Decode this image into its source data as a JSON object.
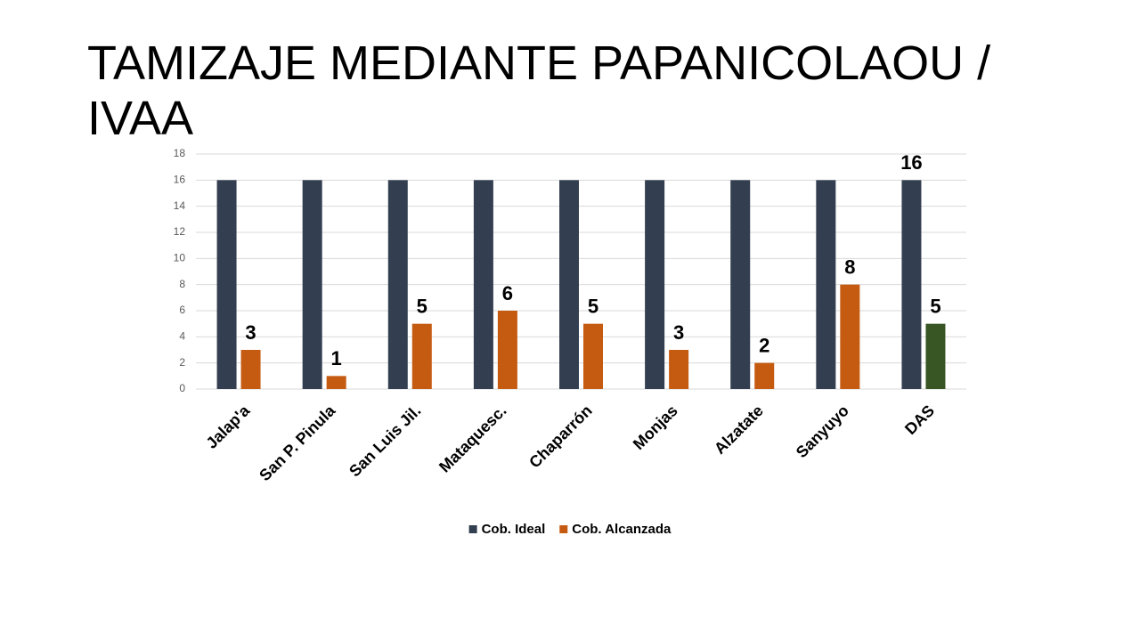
{
  "chart_data": {
    "type": "bar",
    "title": "TAMIZAJE MEDIANTE PAPANICOLAOU / IVAA",
    "categories": [
      "Jalap'a",
      "San P. Pinula",
      "San Luis Jil.",
      "Mataquesc.",
      "Chaparrón",
      "Monjas",
      "Alzatate",
      "Sanyuyo",
      "DAS"
    ],
    "series": [
      {
        "name": "Cob. Ideal",
        "color": "#333f50",
        "values": [
          16,
          16,
          16,
          16,
          16,
          16,
          16,
          16,
          16
        ],
        "data_labels": "last"
      },
      {
        "name": "Cob. Alcanzada",
        "color": "#c55a11",
        "values": [
          3,
          1,
          5,
          6,
          5,
          3,
          2,
          8,
          5
        ],
        "data_labels": "all",
        "colors": [
          "#c55a11",
          "#c55a11",
          "#c55a11",
          "#c55a11",
          "#c55a11",
          "#c55a11",
          "#c55a11",
          "#c55a11",
          "#375623"
        ]
      }
    ],
    "ylim": [
      0,
      18
    ],
    "yticks": [
      0,
      2,
      4,
      6,
      8,
      10,
      12,
      14,
      16,
      18
    ],
    "grid": true,
    "legend": "bottom"
  }
}
